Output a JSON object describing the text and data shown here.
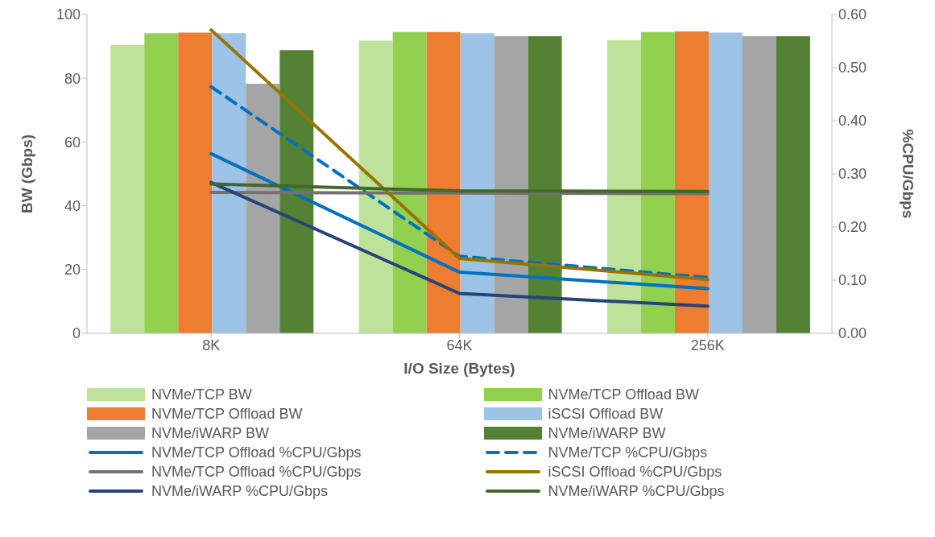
{
  "chart_data": {
    "type": "bar",
    "categories": [
      "8K",
      "64K",
      "256K"
    ],
    "xlabel": "I/O Size (Bytes)",
    "ylabel": "BW (Gbps)",
    "y2label": "%CPU/Gbps",
    "ylim": [
      0,
      100
    ],
    "yticks": [
      0,
      20,
      40,
      60,
      80,
      100
    ],
    "y2lim": [
      0,
      0.6
    ],
    "y2ticks": [
      {
        "value": 0,
        "label": "0.00"
      },
      {
        "value": 0.1,
        "label": "0.10"
      },
      {
        "value": 0.2,
        "label": "0.20"
      },
      {
        "value": 0.3,
        "label": "0.30"
      },
      {
        "value": 0.4,
        "label": "0.40"
      },
      {
        "value": 0.5,
        "label": "0.50"
      },
      {
        "value": 0.6,
        "label": "0.60"
      }
    ],
    "grid": false,
    "legend": "bottom",
    "marker": "none",
    "series": [
      {
        "name": "NVMe/TCP BW",
        "color": "#bfe29a",
        "values": [
          90.4,
          91.8,
          92.0
        ]
      },
      {
        "name": "NVMe/TCP Offload BW",
        "color": "#92d050",
        "values": [
          94.1,
          94.5,
          94.5
        ]
      },
      {
        "name": "NVMe/TCP Offload BW",
        "color": "#ed7d31",
        "values": [
          94.3,
          94.5,
          94.7
        ]
      },
      {
        "name": "iSCSI Offload BW",
        "color": "#9dc3e6",
        "values": [
          94.1,
          94.1,
          94.3
        ]
      },
      {
        "name": "NVMe/iWARP BW",
        "color": "#a5a5a5",
        "values": [
          78.3,
          93.2,
          93.2
        ]
      },
      {
        "name": "NVMe/iWARP BW",
        "color": "#548235",
        "values": [
          88.8,
          93.2,
          93.2
        ]
      },
      {
        "name": "NVMe/TCP Offload %CPU/Gbps",
        "type": "line",
        "axis": "y2",
        "line_style": "solid",
        "color": "#0070c0",
        "values": [
          0.338,
          0.115,
          0.084
        ]
      },
      {
        "name": "NVMe/TCP %CPU/Gbps",
        "type": "line",
        "axis": "y2",
        "line_style": "dashed",
        "color": "#0070c0",
        "values": [
          0.464,
          0.145,
          0.105
        ]
      },
      {
        "name": "NVMe/TCP Offload %CPU/Gbps",
        "type": "line",
        "axis": "y2",
        "line_style": "solid",
        "color": "#767171",
        "values": [
          0.265,
          0.264,
          0.263
        ]
      },
      {
        "name": "iSCSI Offload %CPU/Gbps",
        "type": "line",
        "axis": "y2",
        "line_style": "solid",
        "color": "#997300",
        "values": [
          0.571,
          0.141,
          0.101
        ]
      },
      {
        "name": "NVMe/iWARP %CPU/Gbps",
        "type": "line",
        "axis": "y2",
        "line_style": "solid",
        "color": "#264478",
        "values": [
          0.284,
          0.075,
          0.051
        ]
      },
      {
        "name": "NVMe/iWARP %CPU/Gbps",
        "type": "line",
        "axis": "y2",
        "line_style": "solid",
        "color": "#43682b",
        "values": [
          0.281,
          0.268,
          0.267
        ]
      }
    ]
  }
}
